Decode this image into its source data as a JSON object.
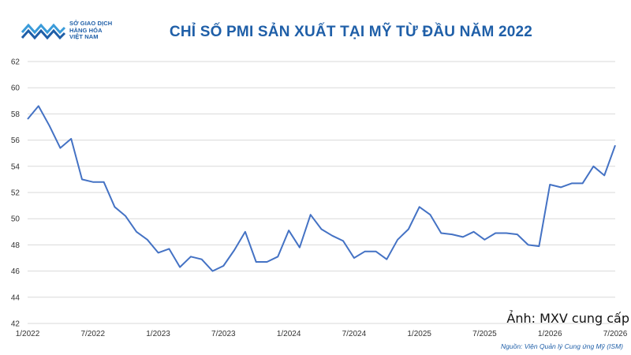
{
  "logo": {
    "line1": "SỞ GIAO DỊCH",
    "line2": "HÀNG HÓA",
    "line3": "VIỆT NAM"
  },
  "credit": "Ảnh: MXV cung cấp",
  "source": "Nguồn: Viện Quản lý Cung ứng Mỹ (ISM)",
  "colors": {
    "line": "#4472c4",
    "title": "#1f5fa8",
    "grid": "#d9d9d9"
  },
  "chart_data": {
    "type": "line",
    "title": "CHỈ SỐ PMI SẢN XUẤT TẠI MỸ TỪ ĐẦU NĂM 2022",
    "xlabel": "",
    "ylabel": "",
    "ylim": [
      42,
      62
    ],
    "yticks": [
      42,
      44,
      46,
      48,
      50,
      52,
      54,
      56,
      58,
      60,
      62
    ],
    "grid": true,
    "x_tick_labels": [
      "1/2022",
      "7/2022",
      "1/2023",
      "7/2023",
      "1/2024",
      "7/2024",
      "1/2025",
      "7/2025",
      "1/2026",
      "7/2026"
    ],
    "series": [
      {
        "values": [
          57.6,
          58.6,
          57.1,
          55.4,
          56.1,
          53.0,
          52.8,
          52.8,
          50.9,
          50.2,
          49.0,
          48.4,
          47.4,
          47.7,
          46.3,
          47.1,
          46.9,
          46.0,
          46.4,
          47.6,
          49.0,
          46.7,
          46.7,
          47.1,
          49.1,
          47.8,
          50.3,
          49.2,
          48.7,
          48.3,
          47.0,
          47.5,
          47.5,
          46.9,
          48.4,
          49.2,
          50.9,
          50.3,
          48.9,
          48.8,
          48.6,
          49.0,
          48.4,
          48.9,
          48.9,
          48.8,
          48.0,
          47.9,
          52.6,
          52.4,
          52.7,
          52.7,
          54.0,
          53.3,
          55.6
        ]
      }
    ]
  }
}
